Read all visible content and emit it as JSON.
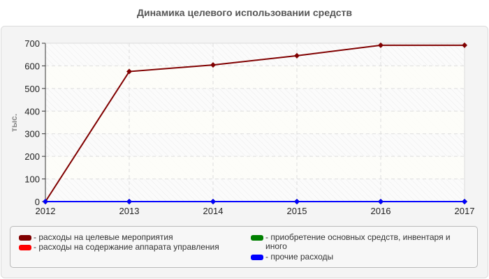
{
  "chart_data": {
    "type": "line",
    "title": "Динамика целевого использовании средств",
    "xlabel": "",
    "ylabel": "тыс.",
    "x": [
      "2012",
      "2013",
      "2014",
      "2015",
      "2016",
      "2017"
    ],
    "ylim": [
      0,
      700
    ],
    "yticks": [
      0,
      100,
      200,
      300,
      400,
      500,
      600,
      700
    ],
    "grid": true,
    "legend_position": "bottom",
    "series": [
      {
        "name": "расходы на целевые мероприятия",
        "color": "#800000",
        "values": [
          0,
          575,
          604,
          645,
          691,
          691
        ]
      },
      {
        "name": "расходы на содержание аппарата управления",
        "color": "#ff0000",
        "values": [
          0,
          0,
          0,
          0,
          0,
          0
        ]
      },
      {
        "name": "приобретение основных средств, инвентаря и иного",
        "color": "#008000",
        "values": [
          0,
          0,
          0,
          0,
          0,
          0
        ]
      },
      {
        "name": "прочие расходы",
        "color": "#0000ff",
        "values": [
          0,
          0,
          0,
          0,
          0,
          0
        ]
      }
    ]
  },
  "header": {
    "title": "Динамика целевого использовании средств"
  },
  "axis": {
    "y_label": "тыс."
  },
  "legend": {
    "items": [
      {
        "label": "- расходы на целевые мероприятия",
        "color": "#800000"
      },
      {
        "label": "- расходы на содержание аппарата управления",
        "color": "#ff0000"
      },
      {
        "label": "- приобретение основных средств, инвентаря и иного",
        "color": "#008000"
      },
      {
        "label": "- прочие расходы",
        "color": "#0000ff"
      }
    ]
  }
}
